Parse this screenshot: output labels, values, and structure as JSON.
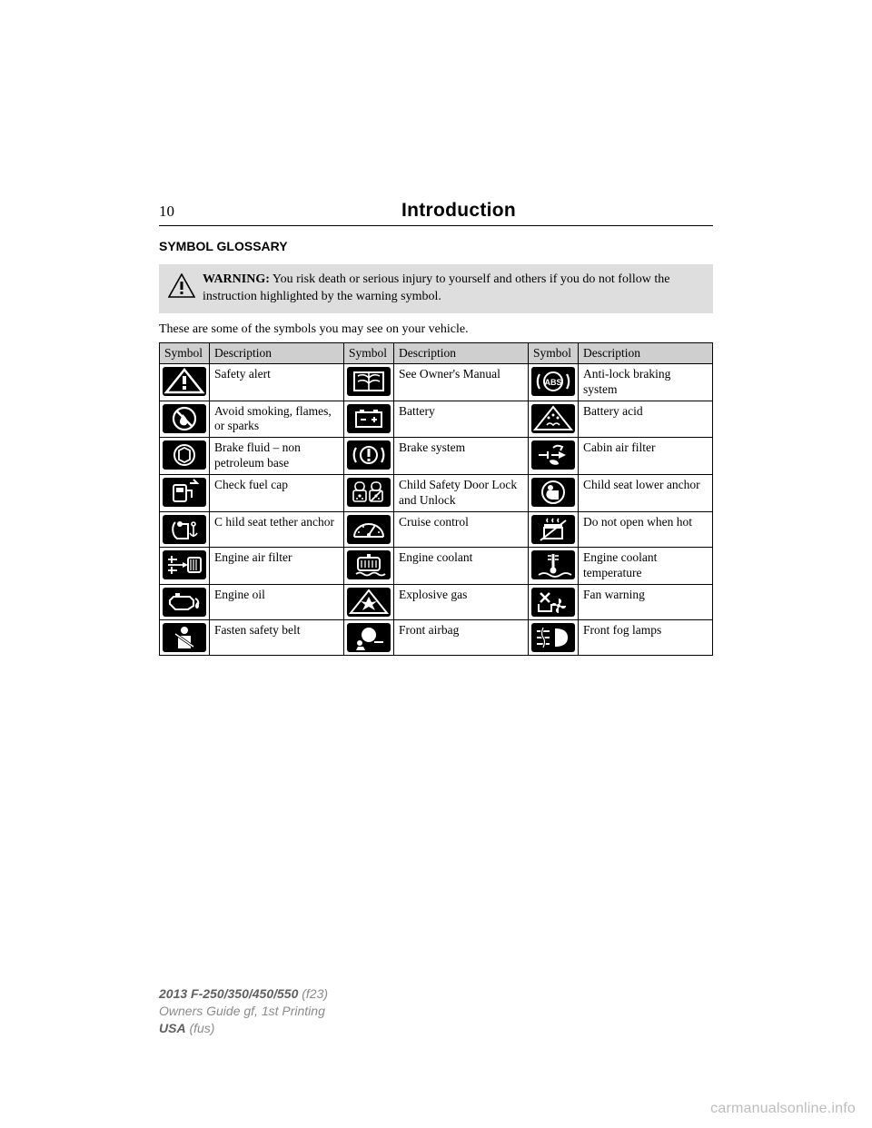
{
  "header": {
    "page_number": "10",
    "title": "Introduction"
  },
  "section_heading": "SYMBOL GLOSSARY",
  "warning": {
    "label": "WARNING:",
    "text": " You risk death or serious injury to yourself and others if you do not follow the instruction highlighted by the warning symbol."
  },
  "intro_text": "These are some of the symbols you may see on your vehicle.",
  "table": {
    "headers": [
      "Symbol",
      "Description",
      "Symbol",
      "Description",
      "Symbol",
      "Description"
    ],
    "header_bg": "#cfcfcf",
    "rows": [
      [
        {
          "icon": "safety-alert-icon",
          "desc": "Safety alert"
        },
        {
          "icon": "owners-manual-icon",
          "desc": "See Owner's Manual"
        },
        {
          "icon": "abs-icon",
          "desc": "Anti-lock braking system"
        }
      ],
      [
        {
          "icon": "no-flame-icon",
          "desc": "Avoid smoking, flames, or sparks"
        },
        {
          "icon": "battery-icon",
          "desc": "Battery"
        },
        {
          "icon": "battery-acid-icon",
          "desc": "Battery acid"
        }
      ],
      [
        {
          "icon": "brake-fluid-icon",
          "desc": "Brake fluid – non petroleum base"
        },
        {
          "icon": "brake-system-icon",
          "desc": "Brake system"
        },
        {
          "icon": "cabin-air-filter-icon",
          "desc": "Cabin air filter"
        }
      ],
      [
        {
          "icon": "check-fuel-cap-icon",
          "desc": "Check fuel cap"
        },
        {
          "icon": "child-lock-icon",
          "desc": "Child Safety Door Lock and Unlock"
        },
        {
          "icon": "child-seat-anchor-icon",
          "desc": "Child seat lower anchor"
        }
      ],
      [
        {
          "icon": "child-seat-tether-icon",
          "desc": "C hild seat tether anchor"
        },
        {
          "icon": "cruise-control-icon",
          "desc": "Cruise control"
        },
        {
          "icon": "do-not-open-hot-icon",
          "desc": "Do not open when hot"
        }
      ],
      [
        {
          "icon": "engine-air-filter-icon",
          "desc": "Engine air filter"
        },
        {
          "icon": "engine-coolant-icon",
          "desc": "Engine coolant"
        },
        {
          "icon": "engine-coolant-temp-icon",
          "desc": "Engine coolant temperature"
        }
      ],
      [
        {
          "icon": "engine-oil-icon",
          "desc": "Engine oil"
        },
        {
          "icon": "explosive-gas-icon",
          "desc": "Explosive gas"
        },
        {
          "icon": "fan-warning-icon",
          "desc": "Fan warning"
        }
      ],
      [
        {
          "icon": "fasten-belt-icon",
          "desc": "Fasten safety belt"
        },
        {
          "icon": "front-airbag-icon",
          "desc": "Front airbag"
        },
        {
          "icon": "front-fog-lamps-icon",
          "desc": "Front fog lamps"
        }
      ]
    ]
  },
  "footer": {
    "line1_dark": "2013 F-250/350/450/550",
    "line1_light": " (f23)",
    "line2": "Owners Guide gf, 1st Printing",
    "line3_dark": "USA",
    "line3_light": " (fus)"
  },
  "watermark": "carmanualsonline.info",
  "style": {
    "page_bg": "#ffffff",
    "warn_bg": "#dedede",
    "icon_bg": "#000000",
    "icon_fg": "#ffffff",
    "footer_light": "#8a8a8a",
    "footer_dark": "#606060",
    "watermark_color": "#bdbdbd",
    "body_fontsize": 14,
    "table_fontsize": 13.5
  }
}
